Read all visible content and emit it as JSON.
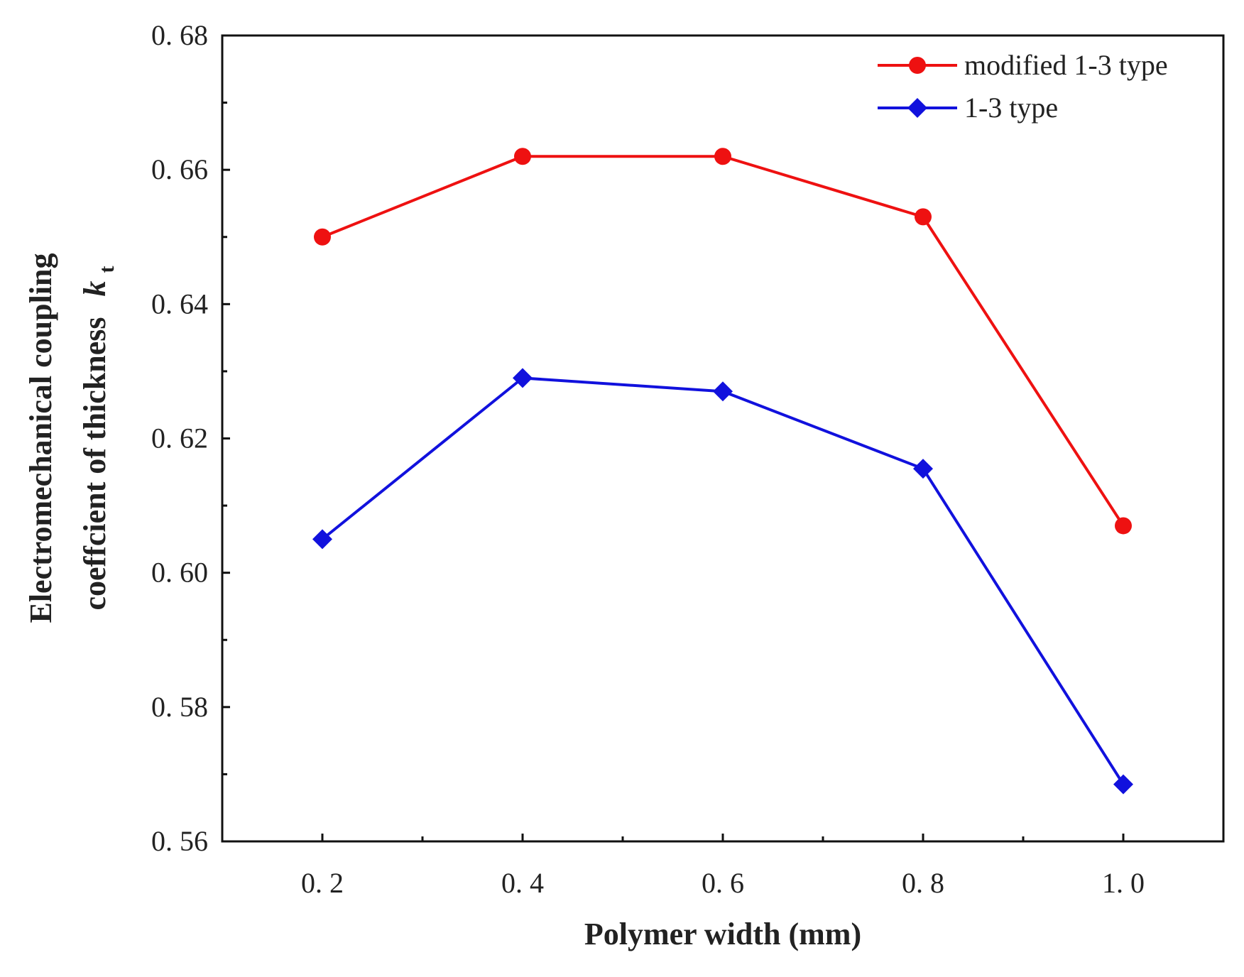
{
  "chart_data": {
    "type": "line",
    "title": "",
    "xlabel": "Polymer width (mm)",
    "ylabel_line1": "Electromechanical coupling",
    "ylabel_line2": "coeffcient of thickness",
    "ylabel_symbol": "k",
    "ylabel_subscript": "t",
    "x": [
      0.2,
      0.4,
      0.6,
      0.8,
      1.0
    ],
    "x_tick_labels": [
      "0. 2",
      "0. 4",
      "0. 6",
      "0. 8",
      "1. 0"
    ],
    "xlim": [
      0.1,
      1.1
    ],
    "ylim": [
      0.56,
      0.68
    ],
    "y_ticks": [
      0.56,
      0.58,
      0.6,
      0.62,
      0.64,
      0.66,
      0.68
    ],
    "y_tick_labels": [
      "0. 56",
      "0. 58",
      "0. 60",
      "0. 62",
      "0. 64",
      "0. 66",
      "0. 68"
    ],
    "grid": false,
    "legend_position": "top-right",
    "series": [
      {
        "name": "modified 1-3 type",
        "color": "#ee1111",
        "marker": "circle",
        "values": [
          0.65,
          0.662,
          0.662,
          0.653,
          0.607
        ]
      },
      {
        "name": "1-3 type",
        "color": "#1111dd",
        "marker": "diamond",
        "values": [
          0.605,
          0.629,
          0.627,
          0.6155,
          0.5685
        ]
      }
    ]
  }
}
